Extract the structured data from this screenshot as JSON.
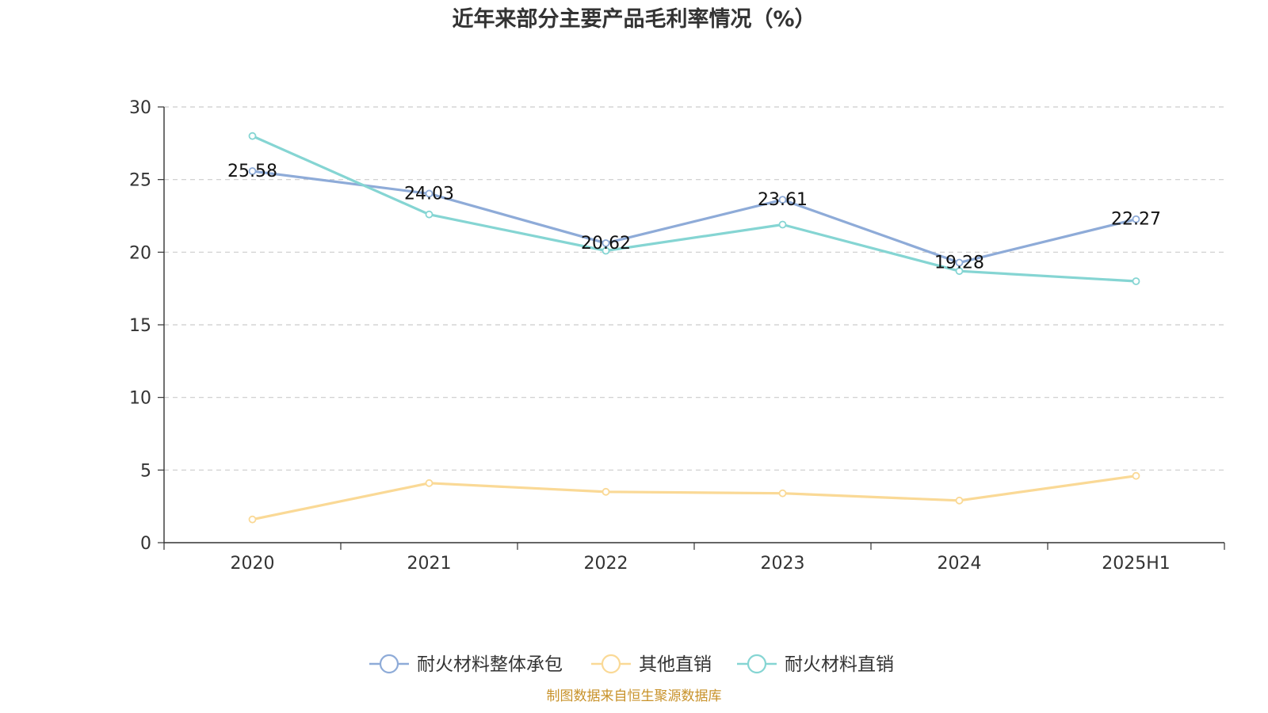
{
  "chart_data": {
    "type": "line",
    "title": "近年来部分主要产品毛利率情况（%）",
    "xlabel": "",
    "ylabel": "",
    "categories": [
      "2020",
      "2021",
      "2022",
      "2023",
      "2024",
      "2025H1"
    ],
    "ylim": [
      0,
      30
    ],
    "yticks": [
      0,
      5,
      10,
      15,
      20,
      25,
      30
    ],
    "grid": true,
    "legend_position": "bottom",
    "series": [
      {
        "name": "耐火材料整体承包",
        "color": "#8eabd8",
        "values": [
          25.58,
          24.03,
          20.62,
          23.61,
          19.28,
          22.27
        ],
        "labels": [
          "25.58",
          "24.03",
          "20.62",
          "23.61",
          "19.28",
          "22.27"
        ]
      },
      {
        "name": "其他直销",
        "color": "#fad996",
        "values": [
          1.6,
          4.1,
          3.5,
          3.4,
          2.9,
          4.6
        ],
        "labels": []
      },
      {
        "name": "耐火材料直销",
        "color": "#85d5d3",
        "values": [
          28.0,
          22.6,
          20.1,
          21.9,
          18.7,
          18.0
        ],
        "labels": []
      }
    ],
    "source": "制图数据来自恒生聚源数据库"
  }
}
